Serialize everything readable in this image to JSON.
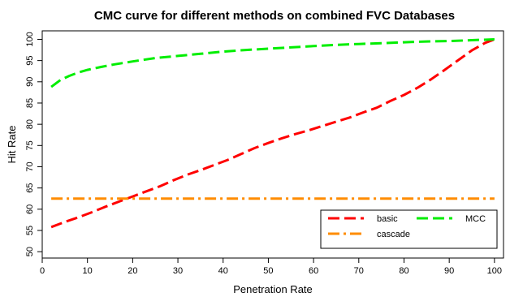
{
  "chart_data": {
    "type": "line",
    "title": "CMC curve for different methods on combined FVC Databases",
    "xlabel": "Penetration Rate",
    "ylabel": "Hit Rate",
    "xlim": [
      0,
      102
    ],
    "ylim": [
      48.5,
      102
    ],
    "xticks": [
      0,
      10,
      20,
      30,
      40,
      50,
      60,
      70,
      80,
      90,
      100
    ],
    "yticks": [
      50,
      55,
      60,
      65,
      70,
      75,
      80,
      85,
      90,
      95,
      100
    ],
    "legend_position": "bottom-right",
    "series": [
      {
        "name": "basic",
        "color": "#ff0000",
        "dash": "long-dash",
        "x": [
          2,
          5,
          8,
          11,
          14,
          17,
          20,
          23,
          26,
          29,
          32,
          35,
          38,
          41,
          44,
          47,
          50,
          53,
          56,
          59,
          62,
          65,
          68,
          71,
          74,
          77,
          80,
          83,
          86,
          89,
          92,
          95,
          98,
          100
        ],
        "y": [
          55.8,
          57.0,
          58.1,
          59.3,
          60.6,
          61.8,
          63.0,
          64.2,
          65.4,
          66.8,
          68.1,
          69.2,
          70.4,
          71.6,
          73.0,
          74.4,
          75.6,
          76.7,
          77.7,
          78.6,
          79.6,
          80.6,
          81.6,
          82.8,
          83.9,
          85.5,
          86.9,
          88.6,
          90.6,
          92.8,
          95.1,
          97.4,
          99.2,
          100.0
        ]
      },
      {
        "name": "cascade",
        "color": "#ff8c00",
        "dash": "dash-dot",
        "x": [
          2,
          100
        ],
        "y": [
          62.5,
          62.5
        ]
      },
      {
        "name": "MCC",
        "color": "#00ee00",
        "dash": "long-dash",
        "x": [
          2,
          4,
          6,
          8,
          10,
          13,
          16,
          20,
          25,
          30,
          35,
          40,
          45,
          50,
          55,
          60,
          65,
          70,
          75,
          80,
          85,
          90,
          95,
          100
        ],
        "y": [
          88.8,
          90.4,
          91.4,
          92.2,
          92.8,
          93.5,
          94.1,
          94.8,
          95.6,
          96.1,
          96.6,
          97.1,
          97.5,
          97.8,
          98.1,
          98.4,
          98.7,
          98.9,
          99.1,
          99.3,
          99.5,
          99.6,
          99.8,
          100.0
        ]
      }
    ]
  }
}
